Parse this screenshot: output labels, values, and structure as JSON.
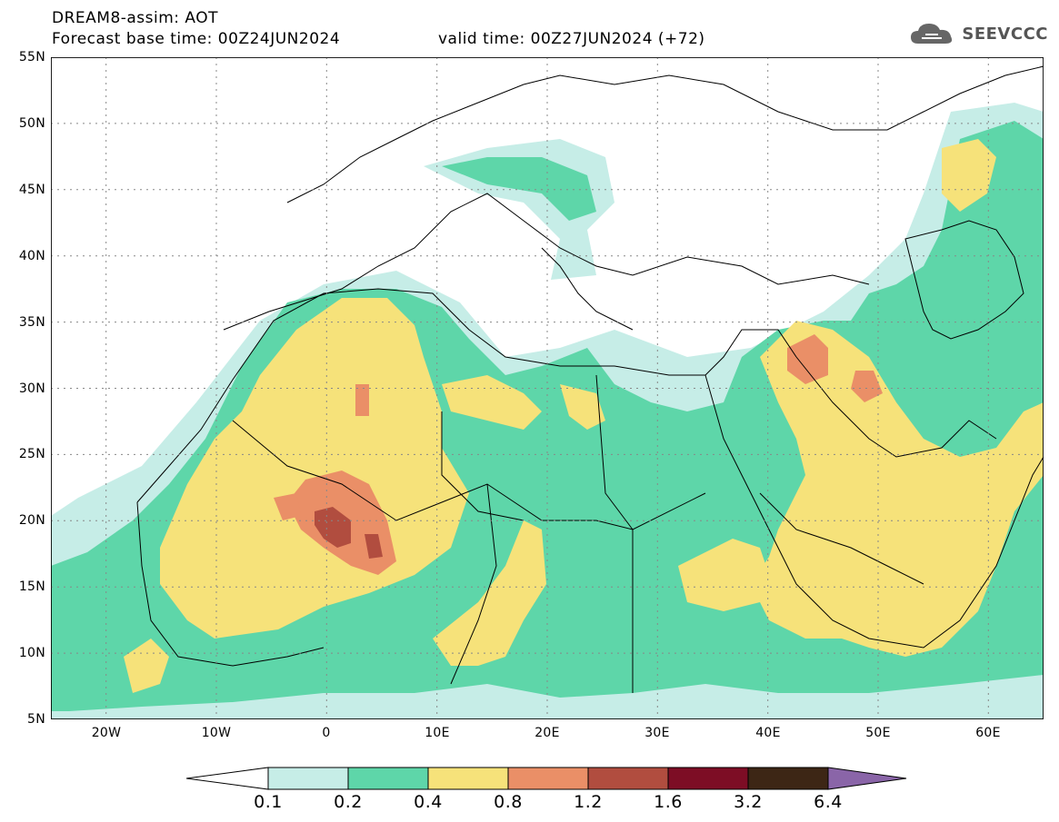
{
  "header": {
    "title_line1": "DREAM8-assim: AOT",
    "title_line2_base": "Forecast base time: 00Z24JUN2024",
    "title_line2_valid": "valid time: 00Z27JUN2024 (+72)",
    "logo_text": "SEEVCCC",
    "logo_icon": "cloud-icon"
  },
  "map": {
    "lat_labels": [
      "55N",
      "50N",
      "45N",
      "40N",
      "35N",
      "30N",
      "25N",
      "20N",
      "15N",
      "10N",
      "5N"
    ],
    "lon_labels": [
      "20W",
      "10W",
      "0",
      "10E",
      "20E",
      "30E",
      "40E",
      "50E",
      "60E"
    ],
    "extent": {
      "lon": [
        -25,
        65
      ],
      "lat": [
        5,
        55
      ]
    },
    "variable": "AOT"
  },
  "colorbar": {
    "labels": [
      "0.1",
      "0.2",
      "0.4",
      "0.8",
      "1.2",
      "1.6",
      "3.2",
      "6.4"
    ],
    "colors": [
      "#ffffff",
      "#c6ede7",
      "#5ed6a9",
      "#f6e27a",
      "#ea8f67",
      "#b14d3f",
      "#7d0d25",
      "#3d2615",
      "#8a65a8"
    ]
  }
}
